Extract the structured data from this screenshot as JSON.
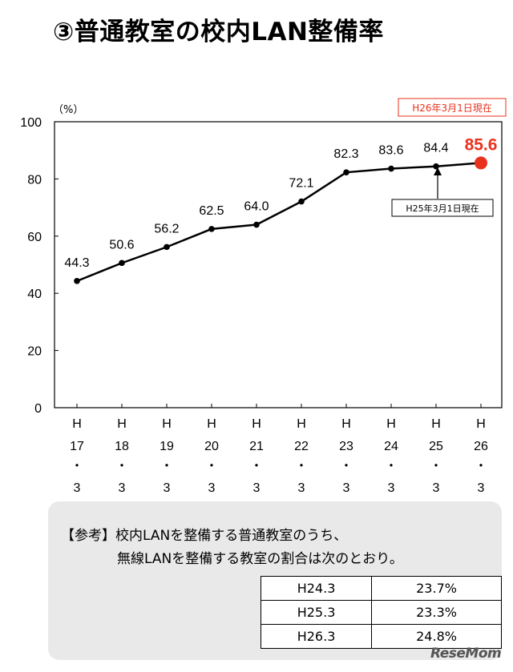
{
  "title": "③普通教室の校内LAN整備率",
  "chart_data": {
    "type": "line",
    "ylabel": "（%）",
    "ylim": [
      0,
      100
    ],
    "yticks": [
      0,
      20,
      40,
      60,
      80,
      100
    ],
    "categories": [
      [
        "H",
        "17",
        "・",
        "3"
      ],
      [
        "H",
        "18",
        "・",
        "3"
      ],
      [
        "H",
        "19",
        "・",
        "3"
      ],
      [
        "H",
        "20",
        "・",
        "3"
      ],
      [
        "H",
        "21",
        "・",
        "3"
      ],
      [
        "H",
        "22",
        "・",
        "3"
      ],
      [
        "H",
        "23",
        "・",
        "3"
      ],
      [
        "H",
        "24",
        "・",
        "3"
      ],
      [
        "H",
        "25",
        "・",
        "3"
      ],
      [
        "H",
        "26",
        "・",
        "3"
      ]
    ],
    "values": [
      44.3,
      50.6,
      56.2,
      62.5,
      64.0,
      72.1,
      82.3,
      83.6,
      84.4,
      85.6
    ],
    "value_labels": [
      "44.3",
      "50.6",
      "56.2",
      "62.5",
      "64.0",
      "72.1",
      "82.3",
      "83.6",
      "84.4",
      "85.6"
    ],
    "grid": false,
    "line_color": "#000000",
    "highlight_color": "#e8321e",
    "annotations": {
      "current_date": "H26年3月1日現在",
      "prev_date": "H25年3月1日現在"
    }
  },
  "reference": {
    "line1": "【参考】校内LANを整備する普通教室のうち、",
    "line2": "無線LANを整備する教室の割合は次のとおり。",
    "rows": [
      {
        "year": "H24.3",
        "value": "23.7%"
      },
      {
        "year": "H25.3",
        "value": "23.3%"
      },
      {
        "year": "H26.3",
        "value": "24.8%"
      }
    ]
  },
  "watermark": "ReseMom"
}
